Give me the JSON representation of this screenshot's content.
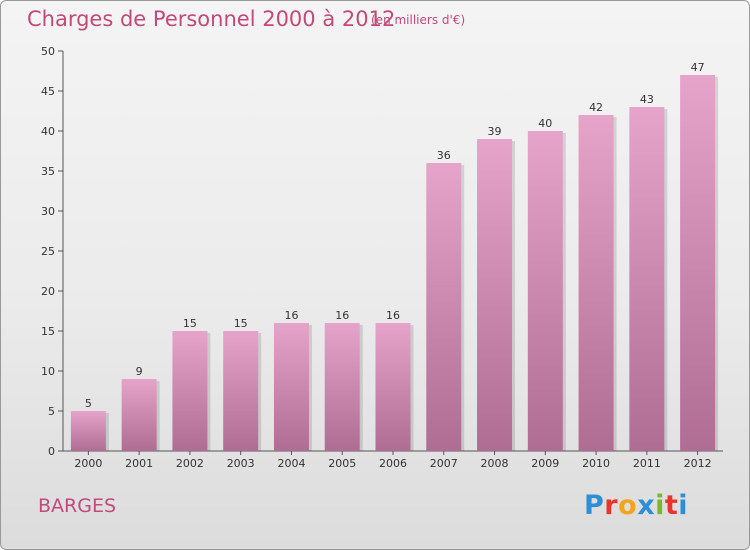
{
  "chart_data": {
    "type": "bar",
    "title": "Charges de Personnel 2000 à 2012",
    "subtitle": "(en milliers d'€)",
    "categories": [
      "2000",
      "2001",
      "2002",
      "2003",
      "2004",
      "2005",
      "2006",
      "2007",
      "2008",
      "2009",
      "2010",
      "2011",
      "2012"
    ],
    "values": [
      5,
      9,
      15,
      15,
      16,
      16,
      16,
      36,
      39,
      40,
      42,
      43,
      47
    ],
    "ylim": [
      0,
      50
    ],
    "yticks": [
      0,
      5,
      10,
      15,
      20,
      25,
      30,
      35,
      40,
      45,
      50
    ],
    "grid": false,
    "bar_color_top": "#e6a4cb",
    "bar_color_bottom": "#b06d93"
  },
  "location": "BARGES",
  "logo": {
    "text": "Proxiti",
    "letter_colors": [
      "#2e8fd6",
      "#e9342b",
      "#f5a31a",
      "#2e8fd6",
      "#7ab829",
      "#e9342b",
      "#2e8fd6"
    ]
  },
  "colors": {
    "accent": "#c4497a"
  }
}
